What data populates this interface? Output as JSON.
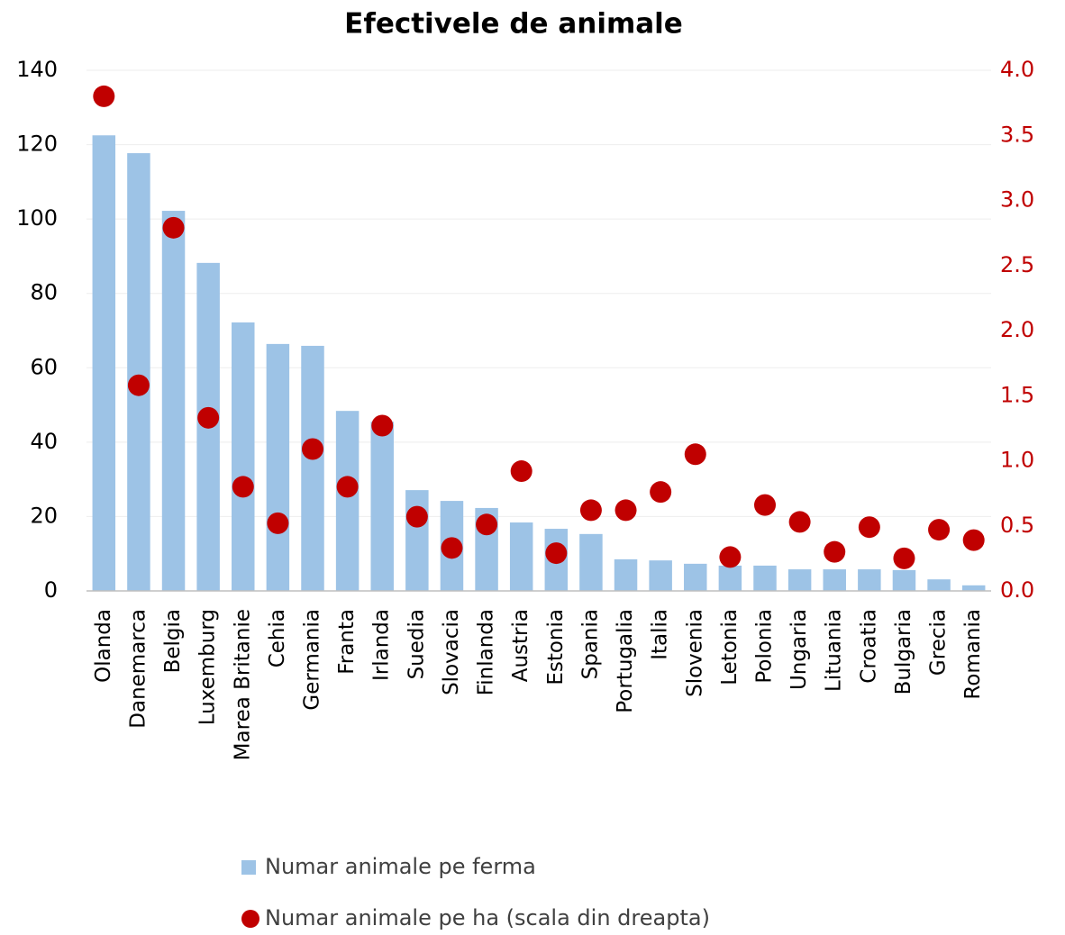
{
  "chart_data": {
    "type": "bar_scatter",
    "title": "Efectivele de animale",
    "categories": [
      "Olanda",
      "Danemarca",
      "Belgia",
      "Luxemburg",
      "Marea Britanie",
      "Cehia",
      "Germania",
      "Franta",
      "Irlanda",
      "Suedia",
      "Slovacia",
      "Finlanda",
      "Austria",
      "Estonia",
      "Spania",
      "Portugalia",
      "Italia",
      "Slovenia",
      "Letonia",
      "Polonia",
      "Ungaria",
      "Lituania",
      "Croatia",
      "Bulgaria",
      "Grecia",
      "Romania"
    ],
    "series": [
      {
        "name": "Numar animale pe ferma",
        "color": "#9dc3e6",
        "type": "bar",
        "values": [
          122.5,
          117.7,
          102.2,
          88.2,
          72.2,
          66.4,
          65.9,
          48.4,
          45.5,
          27.1,
          24.2,
          22.3,
          18.4,
          16.7,
          15.3,
          8.5,
          8.2,
          7.3,
          6.8,
          6.8,
          5.8,
          5.8,
          5.8,
          5.6,
          3.1,
          1.5
        ]
      },
      {
        "name": "Numar animale pe ha (scala din dreapta)",
        "color": "#c00000",
        "type": "scatter",
        "axis": "y2",
        "values": [
          3.8,
          1.58,
          2.79,
          1.33,
          0.8,
          0.52,
          1.09,
          0.8,
          1.27,
          0.57,
          0.33,
          0.51,
          0.92,
          0.29,
          0.62,
          0.62,
          0.76,
          1.05,
          0.26,
          0.66,
          0.53,
          0.3,
          0.49,
          0.25,
          0.47,
          0.39
        ]
      }
    ],
    "ylim": [
      0,
      140
    ],
    "yticks": [
      0,
      20,
      40,
      60,
      80,
      100,
      120,
      140
    ],
    "y2lim": [
      0,
      4
    ],
    "y2ticks": [
      {
        "value": 0,
        "label": "0.0"
      },
      {
        "value": 0.5,
        "label": "0.5"
      },
      {
        "value": 1,
        "label": "1.0"
      },
      {
        "value": 1.5,
        "label": "1.5"
      },
      {
        "value": 2,
        "label": "2.0"
      },
      {
        "value": 2.5,
        "label": "2.5"
      },
      {
        "value": 3,
        "label": "3.0"
      },
      {
        "value": 3.5,
        "label": "3.5"
      },
      {
        "value": 4,
        "label": "4.0"
      }
    ],
    "grid": true,
    "legend": "bottom"
  }
}
